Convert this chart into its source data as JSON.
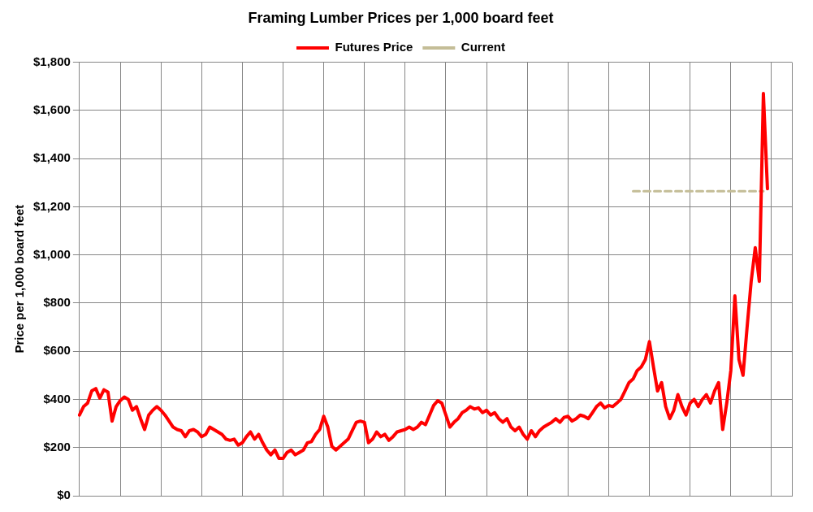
{
  "chart_data": {
    "type": "line",
    "title": "Framing Lumber Prices per 1,000 board feet",
    "ylabel": "Price per 1,000 board feet",
    "legend": "top",
    "grid": true,
    "marker": "none",
    "tick_labels": "y",
    "categories": [
      null,
      null,
      null,
      null,
      null,
      null,
      null,
      null,
      null,
      null,
      null,
      null,
      null,
      null,
      null,
      null,
      null,
      null,
      null,
      null,
      null,
      null,
      null,
      null,
      null,
      null,
      null,
      null,
      null,
      null,
      null,
      null,
      null,
      null,
      null,
      null,
      null,
      null,
      null,
      null,
      null,
      null,
      null,
      null,
      null,
      null,
      null,
      null,
      null,
      null,
      null,
      null,
      null,
      null,
      null,
      null,
      null,
      null,
      null,
      null,
      null,
      null,
      null,
      null,
      null,
      null,
      null,
      null,
      null,
      null,
      null,
      null,
      null,
      null,
      null,
      null,
      null,
      null,
      null,
      null,
      null,
      null,
      null,
      null,
      null,
      null,
      null,
      null,
      null,
      null,
      null,
      null,
      null,
      null,
      null,
      null,
      null,
      null,
      null,
      null,
      null,
      null,
      null,
      null,
      null,
      null,
      null,
      null,
      null,
      null,
      null,
      null,
      null,
      null,
      null,
      null,
      null,
      null,
      null,
      null,
      null,
      null,
      null,
      null,
      null,
      null,
      null,
      null,
      null,
      null,
      null,
      null,
      null,
      null,
      null,
      null,
      null,
      null,
      null,
      null,
      null,
      null,
      null,
      null,
      null,
      null,
      null,
      null,
      null,
      null,
      null,
      null,
      null,
      null,
      null,
      null,
      null,
      null,
      null,
      null,
      null,
      null,
      null,
      null,
      null,
      null,
      null,
      null,
      null,
      null,
      null,
      null,
      null,
      null,
      null,
      null
    ],
    "ylim": [
      0,
      1800
    ],
    "yticks": [
      {
        "value": 0,
        "label": "$0"
      },
      {
        "value": 200,
        "label": "$200"
      },
      {
        "value": 400,
        "label": "$400"
      },
      {
        "value": 600,
        "label": "$600"
      },
      {
        "value": 800,
        "label": "$800"
      },
      {
        "value": 1000,
        "label": "$1,000"
      },
      {
        "value": 1200,
        "label": "$1,200"
      },
      {
        "value": 1400,
        "label": "$1,400"
      },
      {
        "value": 1600,
        "label": "$1,600"
      },
      {
        "value": 1800,
        "label": "$1,800"
      }
    ],
    "series": [
      {
        "name": "Futures Price",
        "color": "#ff0000",
        "line_style": "solid",
        "values": [
          335,
          370,
          385,
          435,
          445,
          405,
          440,
          430,
          310,
          370,
          395,
          410,
          400,
          355,
          370,
          320,
          275,
          335,
          355,
          370,
          355,
          335,
          310,
          285,
          275,
          270,
          245,
          270,
          275,
          265,
          245,
          255,
          285,
          275,
          265,
          255,
          235,
          230,
          235,
          210,
          220,
          245,
          265,
          235,
          255,
          220,
          190,
          170,
          190,
          155,
          155,
          180,
          190,
          170,
          180,
          190,
          220,
          225,
          255,
          275,
          330,
          285,
          205,
          190,
          205,
          220,
          235,
          270,
          305,
          310,
          305,
          220,
          235,
          265,
          245,
          255,
          230,
          245,
          265,
          270,
          275,
          285,
          275,
          285,
          305,
          295,
          335,
          375,
          395,
          385,
          335,
          285,
          305,
          320,
          345,
          355,
          370,
          360,
          365,
          345,
          355,
          335,
          345,
          320,
          305,
          320,
          285,
          270,
          285,
          255,
          235,
          270,
          245,
          270,
          285,
          295,
          305,
          320,
          305,
          325,
          330,
          310,
          320,
          335,
          330,
          320,
          345,
          370,
          385,
          365,
          375,
          370,
          385,
          400,
          435,
          470,
          485,
          520,
          535,
          565,
          640,
          535,
          435,
          470,
          370,
          320,
          355,
          420,
          370,
          335,
          385,
          400,
          370,
          400,
          420,
          385,
          435,
          470,
          275,
          385,
          520,
          830,
          565,
          500,
          700,
          890,
          1030,
          890,
          1670,
          1275,
          null,
          null,
          null,
          null,
          null,
          null
        ]
      },
      {
        "name": "Current",
        "color": "#c4bd97",
        "line_style": "dashed",
        "values": [
          null,
          null,
          null,
          null,
          null,
          null,
          null,
          null,
          null,
          null,
          null,
          null,
          null,
          null,
          null,
          null,
          null,
          null,
          null,
          null,
          null,
          null,
          null,
          null,
          null,
          null,
          null,
          null,
          null,
          null,
          null,
          null,
          null,
          null,
          null,
          null,
          null,
          null,
          null,
          null,
          null,
          null,
          null,
          null,
          null,
          null,
          null,
          null,
          null,
          null,
          null,
          null,
          null,
          null,
          null,
          null,
          null,
          null,
          null,
          null,
          null,
          null,
          null,
          null,
          null,
          null,
          null,
          null,
          null,
          null,
          null,
          null,
          null,
          null,
          null,
          null,
          null,
          null,
          null,
          null,
          null,
          null,
          null,
          null,
          null,
          null,
          null,
          null,
          null,
          null,
          null,
          null,
          null,
          null,
          null,
          null,
          null,
          null,
          null,
          null,
          null,
          null,
          null,
          null,
          null,
          null,
          null,
          null,
          null,
          null,
          null,
          null,
          null,
          null,
          null,
          null,
          null,
          null,
          null,
          null,
          null,
          null,
          null,
          null,
          null,
          null,
          null,
          null,
          null,
          null,
          null,
          null,
          null,
          null,
          null,
          null,
          1265,
          1265,
          1265,
          1265,
          1265,
          1265,
          1265,
          1265,
          1265,
          1265,
          1265,
          1265,
          1265,
          1265,
          1265,
          1265,
          1265,
          1265,
          1265,
          1265,
          1265,
          1265,
          1265,
          1265,
          1265,
          1265,
          1265,
          1265,
          1265,
          1265,
          1265,
          1265,
          1265,
          null,
          null,
          null,
          null,
          null,
          null,
          null
        ]
      }
    ]
  }
}
